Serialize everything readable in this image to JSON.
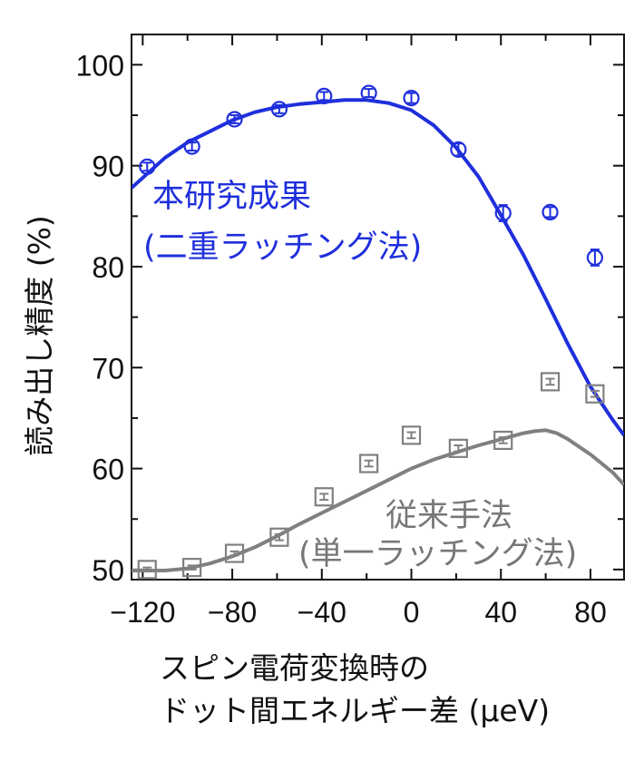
{
  "chart_data": {
    "type": "scatter",
    "xlabel_line1": "スピン電荷変換時の",
    "xlabel_line2": "ドット間エネルギー差 (μeV)",
    "ylabel": "読み出し精度 (%)",
    "xlim": [
      -125,
      95
    ],
    "ylim": [
      49,
      103
    ],
    "x_ticks": [
      -120,
      -80,
      -40,
      0,
      40,
      80
    ],
    "y_ticks": [
      50,
      60,
      70,
      80,
      90,
      100
    ],
    "series": [
      {
        "name_line1": "本研究成果",
        "name_line2": "(二重ラッチング法)",
        "color": "#1f2fdc",
        "marker": "circle",
        "points": [
          {
            "x": -118,
            "y": 89.9,
            "err": 0.4
          },
          {
            "x": -98,
            "y": 91.9,
            "err": 0.4
          },
          {
            "x": -79,
            "y": 94.6,
            "err": 0.4
          },
          {
            "x": -59,
            "y": 95.6,
            "err": 0.4
          },
          {
            "x": -39,
            "y": 96.9,
            "err": 0.4
          },
          {
            "x": -19,
            "y": 97.2,
            "err": 0.4
          },
          {
            "x": 0,
            "y": 96.7,
            "err": 0.5
          },
          {
            "x": 21,
            "y": 91.6,
            "err": 0.6
          },
          {
            "x": 41,
            "y": 85.3,
            "err": 0.8
          },
          {
            "x": 62,
            "y": 85.4,
            "err": 0.5
          },
          {
            "x": 82,
            "y": 80.9,
            "err": 0.8
          }
        ],
        "fit": {
          "x": [
            -125,
            -110,
            -100,
            -90,
            -80,
            -70,
            -60,
            -50,
            -40,
            -30,
            -20,
            -10,
            0,
            10,
            20,
            30,
            40,
            50,
            60,
            70,
            80,
            90,
            95
          ],
          "y": [
            87.8,
            90.8,
            92.3,
            93.4,
            94.5,
            95.3,
            95.8,
            96.1,
            96.3,
            96.5,
            96.5,
            96.2,
            95.5,
            94.0,
            91.8,
            88.9,
            85.1,
            81.2,
            76.8,
            72.3,
            68.1,
            64.8,
            63.3
          ]
        }
      },
      {
        "name_line1": "従来手法",
        "name_line2": "(単一ラッチング法)",
        "color": "#808080",
        "marker": "square",
        "points": [
          {
            "x": -118,
            "y": 50.0,
            "err": 0.2
          },
          {
            "x": -98,
            "y": 50.2,
            "err": 0.2
          },
          {
            "x": -79,
            "y": 51.6,
            "err": 0.2
          },
          {
            "x": -59,
            "y": 53.2,
            "err": 0.3
          },
          {
            "x": -39,
            "y": 57.2,
            "err": 0.3
          },
          {
            "x": -19,
            "y": 60.5,
            "err": 0.3
          },
          {
            "x": 0,
            "y": 63.3,
            "err": 0.3
          },
          {
            "x": 21,
            "y": 62.0,
            "err": 0.3
          },
          {
            "x": 41,
            "y": 62.8,
            "err": 0.3
          },
          {
            "x": 62,
            "y": 68.6,
            "err": 0.3
          },
          {
            "x": 82,
            "y": 67.4,
            "err": 0.3
          }
        ],
        "fit": {
          "x": [
            -125,
            -110,
            -100,
            -90,
            -80,
            -70,
            -60,
            -50,
            -40,
            -30,
            -20,
            -10,
            0,
            10,
            20,
            30,
            40,
            50,
            55,
            60,
            65,
            70,
            80,
            90,
            95
          ],
          "y": [
            49.9,
            49.9,
            50.1,
            50.6,
            51.3,
            52.2,
            53.3,
            54.5,
            55.6,
            56.7,
            57.8,
            58.9,
            60.0,
            60.9,
            61.6,
            62.3,
            62.9,
            63.5,
            63.7,
            63.8,
            63.5,
            62.9,
            61.4,
            59.6,
            58.4
          ]
        }
      }
    ]
  }
}
